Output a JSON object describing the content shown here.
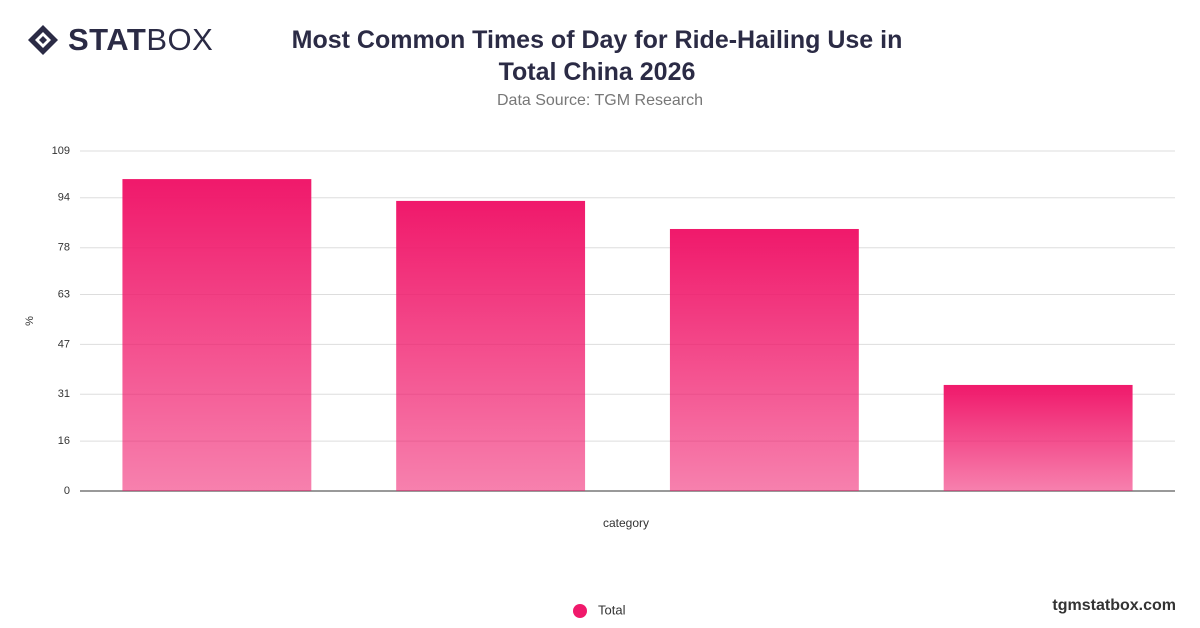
{
  "logo": {
    "bold": "STAT",
    "light": "BOX"
  },
  "footer": "tgmstatbox.com",
  "chart_data": {
    "type": "bar",
    "title": "Most Common Times of Day for Ride-Hailing Use in Total China 2026",
    "subtitle": "Data Source: TGM Research",
    "y_label": "%",
    "x_label": "category",
    "categories": [
      null,
      null,
      null,
      null
    ],
    "series": [
      {
        "name": "Total",
        "color": "#f0196b",
        "values": [
          100,
          93,
          84,
          34
        ]
      }
    ],
    "ylim": [
      0,
      109
    ],
    "yticks": [
      0,
      16,
      31,
      47,
      63,
      78,
      94,
      109
    ],
    "grid": true
  }
}
